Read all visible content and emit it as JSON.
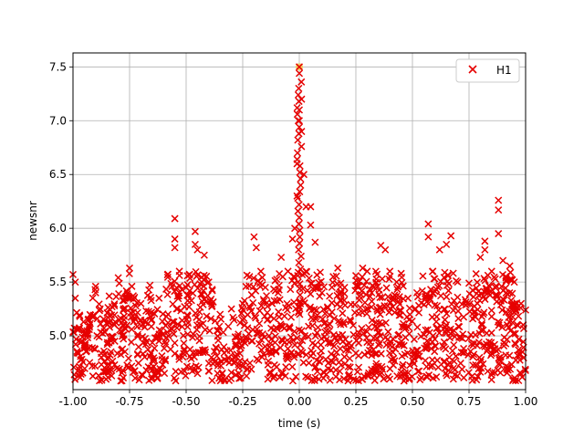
{
  "chart_data": {
    "type": "scatter",
    "xlabel": "time (s)",
    "ylabel": "newsnr",
    "xlim": [
      -1.0,
      1.0
    ],
    "ylim": [
      4.5,
      7.63
    ],
    "grid": true,
    "legend_position": "top-right",
    "x_ticks": [
      "-1.00",
      "-0.75",
      "-0.50",
      "-0.25",
      "0.00",
      "0.25",
      "0.50",
      "0.75",
      "1.00"
    ],
    "y_ticks": [
      "5.0",
      "5.5",
      "6.0",
      "6.5",
      "7.0",
      "7.5"
    ],
    "series": [
      {
        "name": "H1",
        "marker": "x",
        "color": "#e60000",
        "points": [
          [
            -1.0,
            5.57
          ],
          [
            -0.99,
            5.5
          ],
          [
            -0.99,
            5.35
          ],
          [
            -0.97,
            5.18
          ],
          [
            -0.95,
            5.05
          ],
          [
            -0.9,
            5.46
          ],
          [
            -0.9,
            5.4
          ],
          [
            -0.88,
            5.25
          ],
          [
            -0.84,
            5.37
          ],
          [
            -0.8,
            5.54
          ],
          [
            -0.78,
            5.1
          ],
          [
            -0.75,
            5.63
          ],
          [
            -0.74,
            5.46
          ],
          [
            -0.7,
            5.3
          ],
          [
            -0.66,
            5.47
          ],
          [
            -0.62,
            5.35
          ],
          [
            -0.58,
            5.2
          ],
          [
            -0.55,
            6.09
          ],
          [
            -0.55,
            5.9
          ],
          [
            -0.55,
            5.82
          ],
          [
            -0.53,
            5.6
          ],
          [
            -0.5,
            5.45
          ],
          [
            -0.46,
            5.97
          ],
          [
            -0.46,
            5.85
          ],
          [
            -0.45,
            5.8
          ],
          [
            -0.42,
            5.75
          ],
          [
            -0.4,
            5.5
          ],
          [
            -0.35,
            5.2
          ],
          [
            -0.3,
            5.25
          ],
          [
            -0.25,
            5.3
          ],
          [
            -0.22,
            5.55
          ],
          [
            -0.2,
            5.92
          ],
          [
            -0.19,
            5.82
          ],
          [
            -0.17,
            5.6
          ],
          [
            -0.15,
            5.45
          ],
          [
            -0.12,
            5.3
          ],
          [
            -0.08,
            5.73
          ],
          [
            -0.05,
            5.6
          ],
          [
            -0.03,
            5.9
          ],
          [
            -0.02,
            6.0
          ],
          [
            -0.01,
            6.3
          ],
          [
            -0.01,
            6.6
          ],
          [
            0.0,
            7.0
          ],
          [
            0.0,
            7.1
          ],
          [
            0.0,
            7.44
          ],
          [
            0.01,
            7.2
          ],
          [
            0.01,
            6.9
          ],
          [
            0.02,
            6.5
          ],
          [
            0.03,
            6.2
          ],
          [
            0.05,
            6.2
          ],
          [
            0.05,
            6.03
          ],
          [
            0.07,
            5.87
          ],
          [
            0.1,
            5.4
          ],
          [
            0.15,
            5.55
          ],
          [
            0.17,
            5.63
          ],
          [
            0.2,
            5.45
          ],
          [
            0.25,
            5.56
          ],
          [
            0.28,
            5.63
          ],
          [
            0.3,
            5.6
          ],
          [
            0.32,
            5.4
          ],
          [
            0.36,
            5.84
          ],
          [
            0.38,
            5.8
          ],
          [
            0.4,
            5.6
          ],
          [
            0.43,
            5.5
          ],
          [
            0.45,
            5.58
          ],
          [
            0.48,
            5.35
          ],
          [
            0.52,
            5.4
          ],
          [
            0.57,
            6.04
          ],
          [
            0.57,
            5.92
          ],
          [
            0.59,
            5.6
          ],
          [
            0.62,
            5.8
          ],
          [
            0.65,
            5.85
          ],
          [
            0.67,
            5.93
          ],
          [
            0.7,
            5.5
          ],
          [
            0.75,
            5.49
          ],
          [
            0.8,
            5.73
          ],
          [
            0.82,
            5.88
          ],
          [
            0.82,
            5.8
          ],
          [
            0.85,
            5.6
          ],
          [
            0.88,
            6.26
          ],
          [
            0.88,
            6.17
          ],
          [
            0.88,
            5.95
          ],
          [
            0.9,
            5.7
          ],
          [
            0.93,
            5.65
          ],
          [
            0.95,
            5.5
          ],
          [
            0.98,
            5.3
          ],
          [
            1.0,
            5.24
          ]
        ]
      },
      {
        "name": "",
        "marker": "circle",
        "color": "#f0d060",
        "points": [
          [
            0.0,
            7.5
          ]
        ]
      }
    ]
  }
}
